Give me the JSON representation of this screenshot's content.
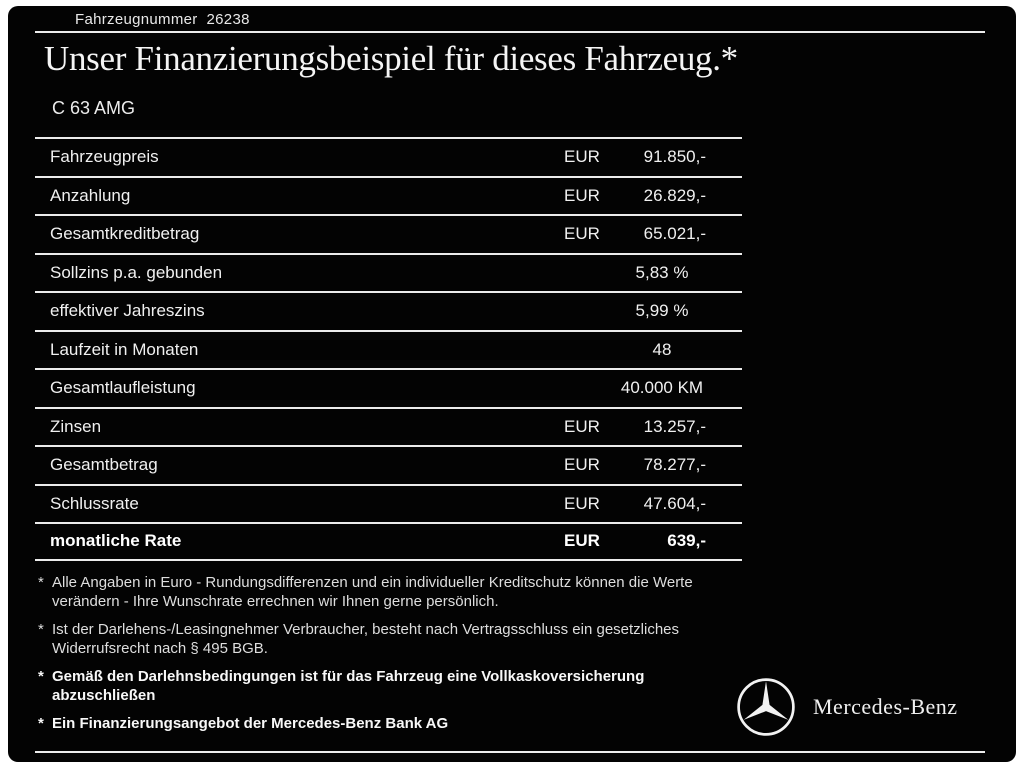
{
  "header": {
    "vehicle_number": "Fahrzeugnummer  26238",
    "title": "Unser Finanzierungsbeispiel für dieses Fahrzeug.*",
    "model": "C 63 AMG"
  },
  "table": {
    "rows": [
      {
        "label": "Fahrzeugpreis",
        "currency": "EUR",
        "value": "91.850,-",
        "bold": false
      },
      {
        "label": "Anzahlung",
        "currency": "EUR",
        "value": "26.829,-",
        "bold": false
      },
      {
        "label": "Gesamtkreditbetrag",
        "currency": "EUR",
        "value": "65.021,-",
        "bold": false
      },
      {
        "label": "Sollzins p.a. gebunden",
        "currency": "",
        "value": "5,83 %",
        "bold": false
      },
      {
        "label": "effektiver Jahreszins",
        "currency": "",
        "value": "5,99 %",
        "bold": false
      },
      {
        "label": "Laufzeit in Monaten",
        "currency": "",
        "value": "48",
        "bold": false
      },
      {
        "label": "Gesamtlaufleistung",
        "currency": "",
        "value": "40.000 KM",
        "bold": false
      },
      {
        "label": "Zinsen",
        "currency": "EUR",
        "value": "13.257,-",
        "bold": false
      },
      {
        "label": "Gesamtbetrag",
        "currency": "EUR",
        "value": "78.277,-",
        "bold": false
      },
      {
        "label": "Schlussrate",
        "currency": "EUR",
        "value": "47.604,-",
        "bold": false
      },
      {
        "label": "monatliche Rate",
        "currency": "EUR",
        "value": "639,-",
        "bold": true
      }
    ]
  },
  "footnotes": [
    {
      "text": "Alle Angaben in Euro - Rundungsdifferenzen und ein individueller Kreditschutz können die Werte verändern - Ihre Wunschrate errechnen wir Ihnen gerne persönlich.",
      "bold": false
    },
    {
      "text": "Ist der Darlehens-/Leasingnehmer Verbraucher, besteht nach Vertragsschluss ein gesetzliches Widerrufsrecht nach § 495 BGB.",
      "bold": false
    },
    {
      "text": "Gemäß den Darlehnsbedingungen ist für das Fahrzeug eine Vollkaskoversicherung abzuschließen",
      "bold": true
    },
    {
      "text": "Ein Finanzierungsangebot der Mercedes-Benz Bank AG",
      "bold": true
    }
  ],
  "brand": {
    "name": "Mercedes-Benz"
  },
  "colors": {
    "background": "#030303",
    "text": "#f2f2f2",
    "rule": "#ececec"
  }
}
